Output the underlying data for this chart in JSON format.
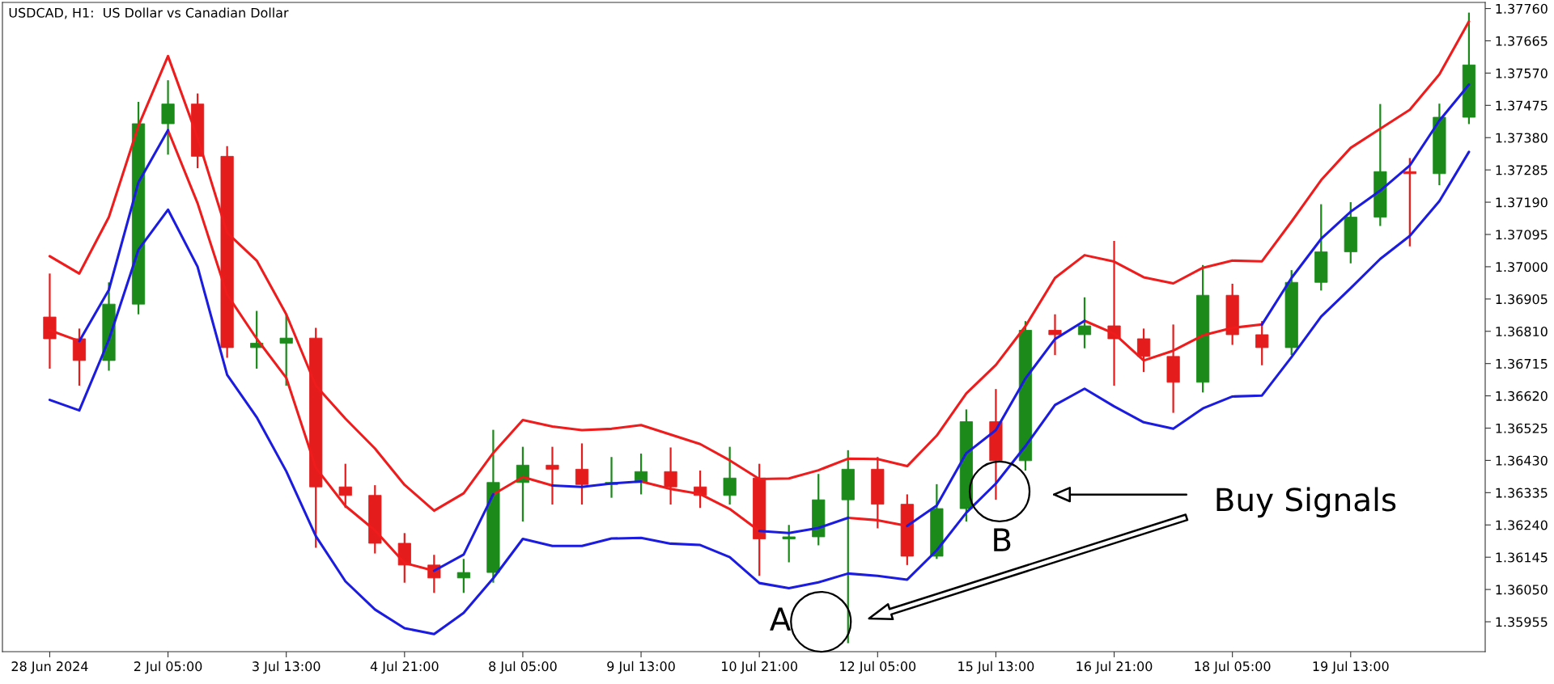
{
  "chart_data": {
    "type": "candlestick",
    "title": "USDCAD, H1:  US Dollar vs Canadian Dollar",
    "categories": [
      "28 Jun 2024",
      null,
      null,
      null,
      "2 Jul 05:00",
      null,
      null,
      null,
      "3 Jul 13:00",
      null,
      null,
      null,
      "4 Jul 21:00",
      null,
      null,
      null,
      "8 Jul 05:00",
      null,
      null,
      null,
      "9 Jul 13:00",
      null,
      null,
      null,
      "10 Jul 21:00",
      null,
      null,
      null,
      "12 Jul 05:00",
      null,
      null,
      null,
      "15 Jul 13:00",
      null,
      null,
      null,
      "16 Jul 21:00",
      null,
      null,
      null,
      "18 Jul 05:00",
      null,
      null,
      null,
      "19 Jul 13:00",
      null,
      null,
      null,
      null
    ],
    "ohlc": [
      [
        1.36852,
        1.3698,
        1.367,
        1.36788
      ],
      [
        1.36788,
        1.36818,
        1.3665,
        1.36724
      ],
      [
        1.36724,
        1.36954,
        1.36694,
        1.3689
      ],
      [
        1.3689,
        1.37485,
        1.3686,
        1.37421
      ],
      [
        1.37421,
        1.37549,
        1.3733,
        1.37479
      ],
      [
        1.37479,
        1.3751,
        1.3729,
        1.37325
      ],
      [
        1.37325,
        1.37355,
        1.36732,
        1.36762
      ],
      [
        1.36762,
        1.3687,
        1.367,
        1.36775
      ],
      [
        1.36775,
        1.3686,
        1.3665,
        1.3679
      ],
      [
        1.3679,
        1.3682,
        1.36173,
        1.36352
      ],
      [
        1.36352,
        1.3642,
        1.3629,
        1.36327
      ],
      [
        1.36327,
        1.36357,
        1.36156,
        1.36186
      ],
      [
        1.36186,
        1.36216,
        1.3607,
        1.36122
      ],
      [
        1.36122,
        1.36152,
        1.3604,
        1.36084
      ],
      [
        1.36084,
        1.3614,
        1.3604,
        1.361
      ],
      [
        1.361,
        1.3652,
        1.3607,
        1.36365
      ],
      [
        1.36365,
        1.3647,
        1.3625,
        1.36416
      ],
      [
        1.36416,
        1.3647,
        1.363,
        1.36404
      ],
      [
        1.36404,
        1.3648,
        1.363,
        1.36359
      ],
      [
        1.36359,
        1.3644,
        1.3632,
        1.36365
      ],
      [
        1.36365,
        1.3645,
        1.3633,
        1.36397
      ],
      [
        1.36397,
        1.36468,
        1.363,
        1.36352
      ],
      [
        1.36352,
        1.364,
        1.3629,
        1.36327
      ],
      [
        1.36327,
        1.3647,
        1.363,
        1.36378
      ],
      [
        1.36378,
        1.3642,
        1.3609,
        1.36199
      ],
      [
        1.36199,
        1.3624,
        1.3613,
        1.36205
      ],
      [
        1.36205,
        1.3639,
        1.3618,
        1.36314
      ],
      [
        1.36314,
        1.3646,
        1.35892,
        1.36404
      ],
      [
        1.36404,
        1.3644,
        1.3623,
        1.36301
      ],
      [
        1.36301,
        1.3633,
        1.36122,
        1.36148
      ],
      [
        1.36148,
        1.3636,
        1.3614,
        1.36288
      ],
      [
        1.36288,
        1.3658,
        1.3625,
        1.36544
      ],
      [
        1.36544,
        1.3664,
        1.36314,
        1.36429
      ],
      [
        1.36429,
        1.3684,
        1.364,
        1.36813
      ],
      [
        1.36813,
        1.3686,
        1.3674,
        1.368
      ],
      [
        1.368,
        1.3691,
        1.3676,
        1.36826
      ],
      [
        1.36826,
        1.37076,
        1.3665,
        1.36788
      ],
      [
        1.36788,
        1.36818,
        1.3669,
        1.36736
      ],
      [
        1.36736,
        1.3683,
        1.3657,
        1.3666
      ],
      [
        1.3666,
        1.37005,
        1.3663,
        1.36916
      ],
      [
        1.36916,
        1.3695,
        1.3677,
        1.368
      ],
      [
        1.368,
        1.3684,
        1.3671,
        1.36762
      ],
      [
        1.36762,
        1.3699,
        1.3674,
        1.36954
      ],
      [
        1.36954,
        1.37184,
        1.3693,
        1.37044
      ],
      [
        1.37044,
        1.3719,
        1.3701,
        1.37146
      ],
      [
        1.37146,
        1.37479,
        1.3712,
        1.3728
      ],
      [
        1.3728,
        1.3732,
        1.3706,
        1.37274
      ],
      [
        1.37274,
        1.3748,
        1.3724,
        1.3744
      ],
      [
        1.3744,
        1.37748,
        1.3742,
        1.37594
      ]
    ],
    "colors": [
      "#e51c1c",
      "#e51c1c",
      "#1b8a1b",
      "#1b8a1b",
      "#1b8a1b",
      "#e51c1c",
      "#e51c1c",
      "#1b8a1b",
      "#1b8a1b",
      "#e51c1c",
      "#e51c1c",
      "#e51c1c",
      "#e51c1c",
      "#e51c1c",
      "#1b8a1b",
      "#1b8a1b",
      "#1b8a1b",
      "#e51c1c",
      "#e51c1c",
      "#1b8a1b",
      "#1b8a1b",
      "#e51c1c",
      "#e51c1c",
      "#1b8a1b",
      "#e51c1c",
      "#1b8a1b",
      "#1b8a1b",
      "#1b8a1b",
      "#e51c1c",
      "#e51c1c",
      "#1b8a1b",
      "#1b8a1b",
      "#e51c1c",
      "#1b8a1b",
      "#e51c1c",
      "#1b8a1b",
      "#e51c1c",
      "#e51c1c",
      "#e51c1c",
      "#1b8a1b",
      "#e51c1c",
      "#e51c1c",
      "#1b8a1b",
      "#1b8a1b",
      "#1b8a1b",
      "#1b8a1b",
      "#e51c1c",
      "#1b8a1b",
      "#1b8a1b"
    ],
    "series": [
      {
        "type": "line",
        "color": "#ee1c1c",
        "values": [
          1.37031,
          1.3698,
          1.37146,
          1.37415,
          1.3762,
          1.3738,
          1.371,
          1.37018,
          1.3686,
          1.3665,
          1.36553,
          1.36465,
          1.36358,
          1.36282,
          1.36333,
          1.36452,
          1.36549,
          1.3653,
          1.36519,
          1.36523,
          1.36534,
          1.36506,
          1.36478,
          1.3643,
          1.36375,
          1.36377,
          1.36401,
          1.36435,
          1.36434,
          1.36413,
          1.36503,
          1.36627,
          1.36711,
          1.36825,
          1.36967,
          1.37034,
          1.37015,
          1.36969,
          1.36951,
          1.36997,
          1.37018,
          1.37016,
          1.37133,
          1.37255,
          1.3735,
          1.37406,
          1.37462,
          1.37566,
          1.37722
        ]
      },
      {
        "type": "line",
        "color": "#1c1ce0",
        "values": [
          1.36608,
          1.36577,
          1.36785,
          1.3705,
          1.37168,
          1.37,
          1.36682,
          1.36557,
          1.36398,
          1.36207,
          1.36074,
          1.35991,
          1.35936,
          1.35919,
          1.35981,
          1.36083,
          1.36199,
          1.36178,
          1.36178,
          1.362,
          1.36202,
          1.36185,
          1.36181,
          1.36145,
          1.36069,
          1.36054,
          1.36071,
          1.36097,
          1.3609,
          1.36079,
          1.36165,
          1.36276,
          1.36362,
          1.36472,
          1.36593,
          1.36641,
          1.36589,
          1.36542,
          1.36523,
          1.36583,
          1.36618,
          1.36621,
          1.36734,
          1.36853,
          1.36937,
          1.37023,
          1.37091,
          1.37193,
          1.37338
        ]
      },
      {
        "type": "line",
        "color": "#ee1c1c",
        "values": [
          1.36813,
          1.36781,
          null,
          null,
          1.37402,
          1.37187,
          1.36918,
          1.36788,
          1.36673,
          1.36408,
          1.36296,
          1.36224,
          1.36128,
          1.36105,
          null,
          1.3633,
          1.36381,
          1.36356,
          null,
          null,
          1.36368,
          1.36346,
          1.36331,
          1.36287,
          1.36222,
          null,
          null,
          1.36261,
          1.36254,
          1.36237,
          null,
          null,
          null,
          null,
          null,
          1.36841,
          1.36803,
          1.36724,
          1.36753,
          1.36798,
          1.3682,
          1.3683,
          null,
          null,
          null,
          null,
          null,
          null,
          null
        ]
      },
      {
        "type": "line",
        "color": "#1c1ce0",
        "values": [
          null,
          1.36781,
          1.36932,
          1.37248,
          1.37402,
          null,
          null,
          null,
          null,
          null,
          null,
          null,
          null,
          1.36105,
          1.36153,
          1.3633,
          null,
          1.36356,
          1.36352,
          1.36362,
          1.36368,
          null,
          null,
          null,
          1.36222,
          1.36216,
          1.36231,
          1.36261,
          null,
          1.36237,
          1.36297,
          1.36451,
          1.36519,
          1.36671,
          1.36787,
          1.36841,
          null,
          null,
          null,
          null,
          null,
          1.3683,
          1.36967,
          1.37082,
          1.37162,
          1.37224,
          1.37298,
          1.3743,
          1.37536
        ]
      }
    ],
    "ylim": [
      1.35867,
      1.37778
    ],
    "yticks": [
      {
        "value": 1.35955,
        "label": "1.35955"
      },
      {
        "value": 1.3605,
        "label": "1.36050"
      },
      {
        "value": 1.36145,
        "label": "1.36145"
      },
      {
        "value": 1.3624,
        "label": "1.36240"
      },
      {
        "value": 1.36335,
        "label": "1.36335"
      },
      {
        "value": 1.3643,
        "label": "1.36430"
      },
      {
        "value": 1.36525,
        "label": "1.36525"
      },
      {
        "value": 1.3662,
        "label": "1.36620"
      },
      {
        "value": 1.36715,
        "label": "1.36715"
      },
      {
        "value": 1.3681,
        "label": "1.36810"
      },
      {
        "value": 1.36905,
        "label": "1.36905"
      },
      {
        "value": 1.37,
        "label": "1.37000"
      },
      {
        "value": 1.37095,
        "label": "1.37095"
      },
      {
        "value": 1.3719,
        "label": "1.37190"
      },
      {
        "value": 1.37285,
        "label": "1.37285"
      },
      {
        "value": 1.3738,
        "label": "1.37380"
      },
      {
        "value": 1.37475,
        "label": "1.37475"
      },
      {
        "value": 1.3757,
        "label": "1.37570"
      },
      {
        "value": 1.37665,
        "label": "1.37665"
      },
      {
        "value": 1.3776,
        "label": "1.37760"
      }
    ],
    "annotations": [
      "A",
      "B",
      "Buy Signals"
    ]
  }
}
